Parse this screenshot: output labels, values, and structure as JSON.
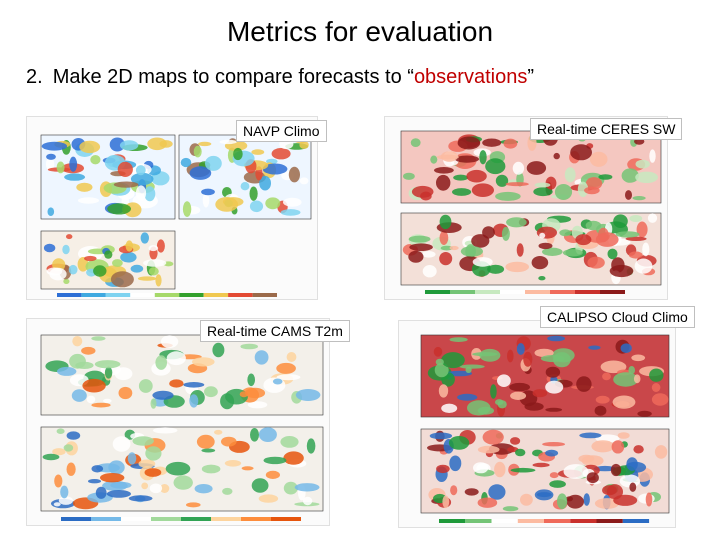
{
  "slide": {
    "title": "Metrics for evaluation",
    "bullet_number": "2.",
    "bullet_prefix": "Make 2D maps to compare forecasts to “",
    "bullet_highlight": "observations",
    "bullet_suffix": "”",
    "highlight_color": "#c00000"
  },
  "labels": {
    "navp": "NAVP Climo",
    "ceres": "Real-time CERES SW",
    "cams": "Real-time CAMS T2m",
    "calipso": "CALIPSO Cloud Climo"
  },
  "map_palettes": {
    "navp": [
      "#2d6fd6",
      "#3fa9e0",
      "#7fd3f0",
      "#ffffff",
      "#a6d96a",
      "#33a02c",
      "#f0c850",
      "#e34a33",
      "#9b6a4a"
    ],
    "ceres": [
      "#1f9a3a",
      "#74c476",
      "#c7e9c0",
      "#ffffff",
      "#fcbba1",
      "#ef6a5a",
      "#c9302c",
      "#8b1a1a"
    ],
    "cams": [
      "#2b6cc4",
      "#74b9e8",
      "#ffffff",
      "#a1d99b",
      "#31a354",
      "#fdd49e",
      "#fd8d3c",
      "#e6550d"
    ],
    "calipso": [
      "#1f9a3a",
      "#74c476",
      "#ffffff",
      "#fcbba1",
      "#ef6a5a",
      "#c9302c",
      "#8b1a1a",
      "#2b6cc4"
    ]
  }
}
